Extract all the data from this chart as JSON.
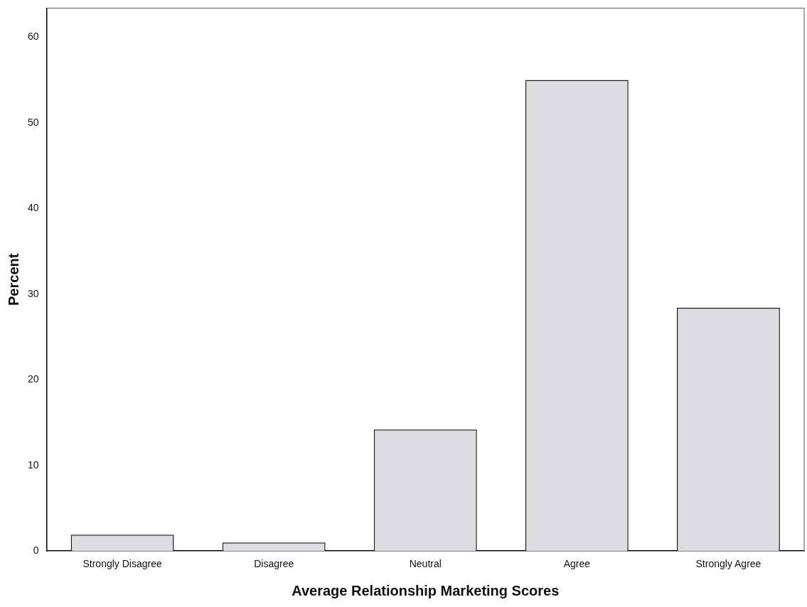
{
  "chart_data": {
    "type": "bar",
    "xlabel": "Average Relationship Marketing Scores",
    "ylabel": "Percent",
    "categories": [
      "Strongly Disagree",
      "Disagree",
      "Neutral",
      "Agree",
      "Strongly Agree"
    ],
    "values": [
      1.9,
      1.0,
      14.2,
      55.0,
      28.4
    ],
    "color": "#dcdce2",
    "ylim": [
      0,
      63.4
    ],
    "yticks": [
      0,
      10,
      20,
      30,
      40,
      50,
      60
    ],
    "grid": false,
    "legend": false
  }
}
